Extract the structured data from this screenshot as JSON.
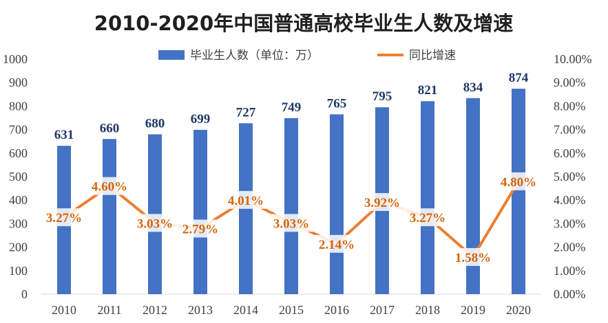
{
  "chart_data": {
    "type": "bar",
    "title": "2010-2020年中国普通高校毕业生人数及增速",
    "categories": [
      "2010",
      "2011",
      "2012",
      "2013",
      "2014",
      "2015",
      "2016",
      "2017",
      "2018",
      "2019",
      "2020"
    ],
    "series": [
      {
        "name": "毕业生人数（单位：万）",
        "type": "bar",
        "axis": "left",
        "values": [
          631,
          660,
          680,
          699,
          727,
          749,
          765,
          795,
          821,
          834,
          874
        ],
        "color": "#4472c4"
      },
      {
        "name": "同比增速",
        "type": "line",
        "axis": "right",
        "values": [
          3.27,
          4.6,
          3.03,
          2.79,
          4.01,
          3.03,
          2.14,
          3.92,
          3.27,
          1.58,
          4.8
        ],
        "labels": [
          "3.27%",
          "4.60%",
          "3.03%",
          "2.79%",
          "4.01%",
          "3.03%",
          "2.14%",
          "3.92%",
          "3.27%",
          "1.58%",
          "4.80%"
        ],
        "color": "#ed7d31"
      }
    ],
    "y_left": {
      "min": 0,
      "max": 1000,
      "ticks": [
        "0",
        "100",
        "200",
        "300",
        "400",
        "500",
        "600",
        "700",
        "800",
        "900",
        "1000"
      ]
    },
    "y_right": {
      "min": 0,
      "max": 10,
      "ticks": [
        "0.00%",
        "1.00%",
        "2.00%",
        "3.00%",
        "4.00%",
        "5.00%",
        "6.00%",
        "7.00%",
        "8.00%",
        "9.00%",
        "10.00%"
      ]
    },
    "legend_position": "top",
    "grid": false
  }
}
